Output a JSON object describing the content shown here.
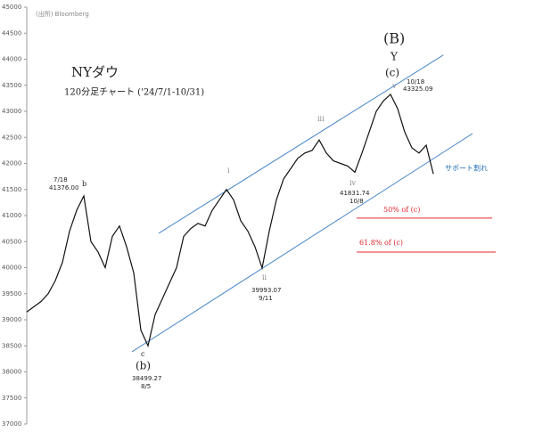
{
  "chart_data": {
    "type": "line",
    "title": "NYダウ",
    "subtitle": "120分足チャート ('24/7/1-10/31)",
    "source": "(出所) Bloomberg",
    "series": [
      {
        "name": "NYダウ",
        "color": "#111111",
        "values": [
          39150,
          39250,
          39350,
          39500,
          39750,
          40100,
          40700,
          41100,
          41376,
          40500,
          40300,
          40000,
          40600,
          40800,
          40400,
          39900,
          38800,
          38499,
          39100,
          39400,
          39700,
          40000,
          40600,
          40750,
          40850,
          40800,
          41100,
          41300,
          41500,
          41300,
          40900,
          40700,
          40400,
          39993,
          40700,
          41300,
          41700,
          41900,
          42100,
          42200,
          42250,
          42450,
          42200,
          42050,
          42000,
          41950,
          41832,
          42200,
          42600,
          43000,
          43200,
          43325,
          43050,
          42600,
          42300,
          42200,
          42350,
          41800
        ]
      }
    ],
    "ylim": [
      37000,
      45000
    ],
    "yticks": [
      37000,
      37500,
      38000,
      38500,
      39000,
      39500,
      40000,
      40500,
      41000,
      41500,
      42000,
      42500,
      43000,
      43500,
      44000,
      44500,
      45000
    ],
    "channel_color": "#4a86c8",
    "channel_lines": [
      [
        [
          18.5,
          40660
        ],
        [
          58.4,
          44080
        ]
      ],
      [
        [
          14.75,
          38385
        ],
        [
          62.5,
          42573
        ]
      ]
    ],
    "level_color": "#e0242a",
    "levels": [
      40950,
      40300
    ],
    "annotations": [
      "7/18",
      "41376.00",
      "b",
      "i",
      "ii",
      "39993.07",
      "9/11",
      "iii",
      "iv",
      "41831.74",
      "10/8",
      "(B)",
      "Y",
      "(c)",
      "v",
      "10/18",
      "43325.09",
      "c",
      "(b)",
      "38499.27",
      "8/5",
      "サポート割れ",
      "50% of (c)",
      "61.8% of (c)"
    ]
  }
}
